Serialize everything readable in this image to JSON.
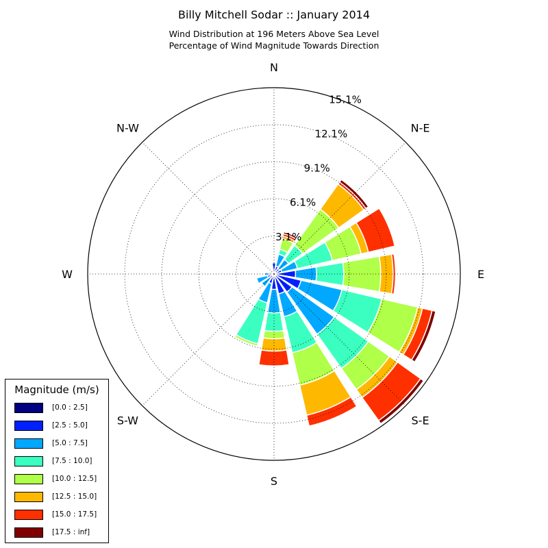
{
  "chart_data": {
    "type": "windrose",
    "title": "Billy Mitchell Sodar :: January 2014",
    "subtitle_lines": [
      "Wind Distribution at 196 Meters Above Sea Level",
      "Percentage of Wind Magnitude Towards Direction"
    ],
    "direction_labels": [
      "N",
      "N-E",
      "E",
      "S-E",
      "S",
      "S-W",
      "W",
      "N-W"
    ],
    "radial_ticks": [
      "3.1%",
      "6.1%",
      "9.1%",
      "12.1%",
      "15.1%"
    ],
    "radial_tick_values": [
      3.07,
      6.1,
      9.1,
      12.1,
      15.1
    ],
    "rmax": 15.1,
    "legend_title": "Magnitude (m/s)",
    "bins": [
      "[0.0 : 2.5]",
      "[2.5 : 5.0]",
      "[5.0 : 7.5]",
      "[7.5 : 10.0]",
      "[10.0 : 12.5]",
      "[12.5 : 15.0]",
      "[15.0 : 17.5]",
      "[17.5 : inf]"
    ],
    "colors": [
      "#000080",
      "#0020ff",
      "#00a8ff",
      "#3affc0",
      "#b0ff48",
      "#ffb800",
      "#ff3000",
      "#800000"
    ],
    "directions": [
      {
        "dir": 0,
        "values": [
          0.1,
          0.8,
          0,
          0,
          0,
          0,
          0,
          0
        ]
      },
      {
        "dir": 22.5,
        "values": [
          0.05,
          0.6,
          1.0,
          0.4,
          0.9,
          0.2,
          0.2,
          0.15
        ]
      },
      {
        "dir": 45,
        "values": [
          0.05,
          0.5,
          0.9,
          1.4,
          3.6,
          2.5,
          0.2,
          0.25
        ]
      },
      {
        "dir": 67.5,
        "values": [
          0.05,
          0.6,
          1.3,
          2.9,
          2.4,
          0.6,
          2.2,
          0
        ]
      },
      {
        "dir": 90,
        "values": [
          0.05,
          1.7,
          1.7,
          2.2,
          3.0,
          1.0,
          0.2,
          0
        ]
      },
      {
        "dir": 112.5,
        "values": [
          0.05,
          2.2,
          3.4,
          3.3,
          3.0,
          0.4,
          0.8,
          0.3
        ]
      },
      {
        "dir": 135,
        "values": [
          0.1,
          1.7,
          4.2,
          3.4,
          2.1,
          0.8,
          2.3,
          0.3
        ]
      },
      {
        "dir": 157.5,
        "values": [
          0.05,
          1.6,
          1.9,
          3.0,
          2.7,
          2.5,
          0.9,
          0
        ]
      },
      {
        "dir": 180,
        "values": [
          0.05,
          1.2,
          1.9,
          1.5,
          0.6,
          1.0,
          1.2,
          0
        ]
      },
      {
        "dir": 202.5,
        "values": [
          0.1,
          0.7,
          1.6,
          3.4,
          0.2,
          0,
          0,
          0
        ]
      },
      {
        "dir": 225,
        "values": [
          0.05,
          0.4,
          0.8,
          0,
          0,
          0,
          0,
          0
        ]
      },
      {
        "dir": 247.5,
        "values": [
          0.05,
          0.5,
          0.9,
          0,
          0,
          0,
          0,
          0
        ]
      },
      {
        "dir": 270,
        "values": [
          0.05,
          0.4,
          0.3,
          0,
          0,
          0,
          0,
          0
        ]
      },
      {
        "dir": 292.5,
        "values": [
          0.05,
          0.2,
          0.15,
          0,
          0,
          0,
          0,
          0
        ]
      },
      {
        "dir": 315,
        "values": [
          0.05,
          0.25,
          0,
          0,
          0,
          0,
          0,
          0
        ]
      },
      {
        "dir": 337.5,
        "values": [
          0.05,
          0.25,
          0,
          0,
          0,
          0,
          0,
          0
        ]
      }
    ]
  }
}
